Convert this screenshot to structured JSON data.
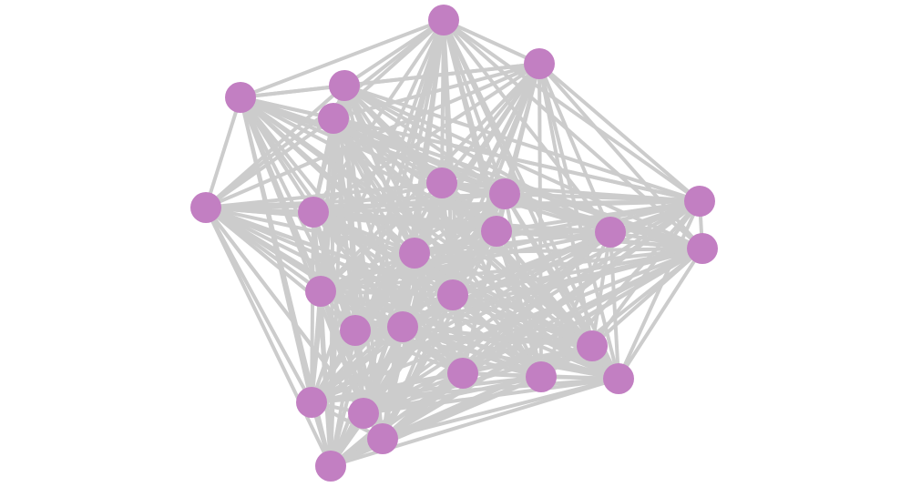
{
  "graph": {
    "node_color": "#c27fc2",
    "edge_color": "#cccccc",
    "layout": "force-directed",
    "connectivity": "near-complete"
  }
}
